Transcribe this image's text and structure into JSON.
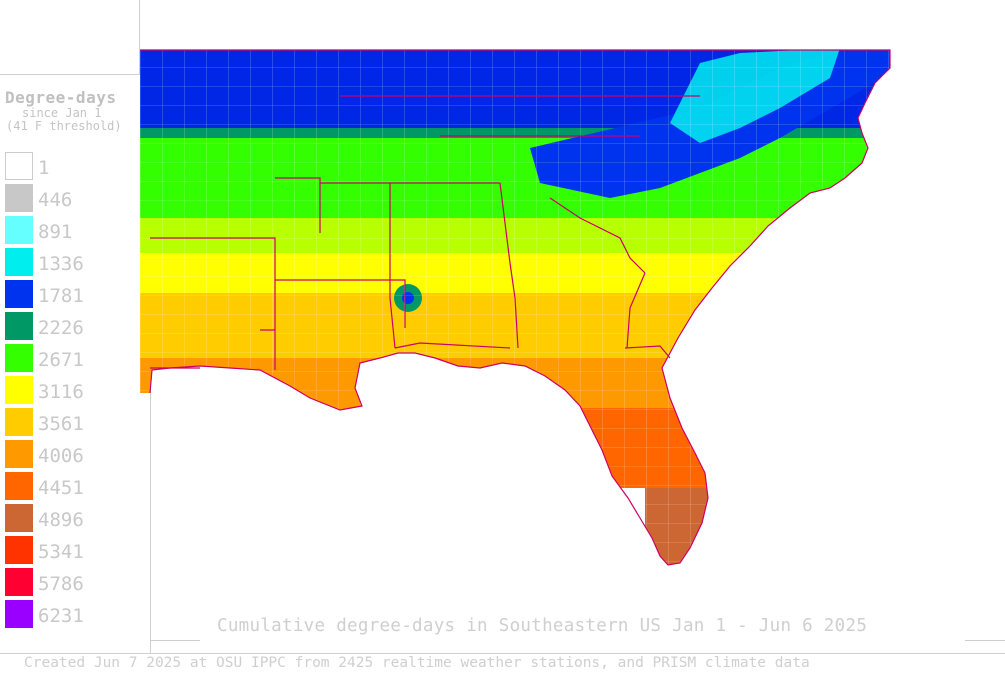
{
  "legend": {
    "title": "Degree-days",
    "subtitle_1": "since Jan 1",
    "subtitle_2": "(41 F threshold)",
    "items": [
      {
        "value": "1",
        "color": "#ffffff"
      },
      {
        "value": "446",
        "color": "#c8c8c8"
      },
      {
        "value": "891",
        "color": "#66ffff"
      },
      {
        "value": "1336",
        "color": "#00eeee"
      },
      {
        "value": "1781",
        "color": "#0033ee"
      },
      {
        "value": "2226",
        "color": "#009966"
      },
      {
        "value": "2671",
        "color": "#33ff00"
      },
      {
        "value": "3116",
        "color": "#ffff00"
      },
      {
        "value": "3561",
        "color": "#ffcc00"
      },
      {
        "value": "4006",
        "color": "#ff9900"
      },
      {
        "value": "4451",
        "color": "#ff6600"
      },
      {
        "value": "4896",
        "color": "#cc6633"
      },
      {
        "value": "5341",
        "color": "#ff3300"
      },
      {
        "value": "5786",
        "color": "#ff0033"
      },
      {
        "value": "6231",
        "color": "#9900ff"
      }
    ]
  },
  "map": {
    "title": "Cumulative degree-days in Southeastern US Jan 1 - Jun 6 2025",
    "boundary_color": "#cc0066",
    "county_color": "#ffffff"
  },
  "footer": {
    "credit": "Created Jun 7 2025 at OSU IPPC from 2425 realtime weather stations, and PRISM climate data"
  }
}
